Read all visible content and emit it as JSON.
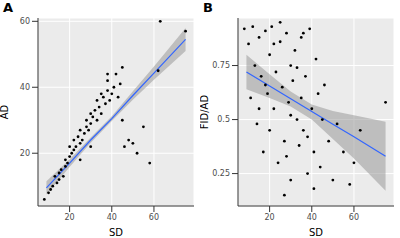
{
  "chart_data": [
    {
      "type": "scatter",
      "title": "A",
      "x_label": "SD",
      "y_label": "AD",
      "grid": true,
      "color": "#000000",
      "xlim": [
        5,
        79
      ],
      "ylim": [
        4,
        61
      ],
      "xticks": [
        20,
        40,
        60
      ],
      "yticks": [
        20,
        40,
        60
      ],
      "x": [
        8,
        10,
        11,
        12,
        13,
        14,
        15,
        15,
        16,
        17,
        18,
        18,
        19,
        20,
        20,
        21,
        22,
        22,
        23,
        24,
        25,
        25,
        26,
        27,
        28,
        28,
        29,
        30,
        30,
        31,
        32,
        33,
        33,
        34,
        35,
        35,
        36,
        37,
        38,
        38,
        39,
        40,
        41,
        42,
        43,
        44,
        45,
        46,
        48,
        50,
        52,
        55,
        58,
        62,
        63,
        75,
        45,
        38,
        30,
        25
      ],
      "values": [
        6,
        8,
        9,
        10,
        13,
        11,
        12,
        14,
        15,
        13,
        16,
        18,
        17,
        19,
        22,
        20,
        21,
        24,
        22,
        25,
        23,
        27,
        24,
        26,
        28,
        30,
        27,
        32,
        29,
        31,
        33,
        30,
        36,
        34,
        38,
        32,
        37,
        35,
        39,
        42,
        36,
        38,
        40,
        44,
        37,
        41,
        30,
        22,
        24,
        23,
        20,
        28,
        17,
        45,
        60,
        57,
        46,
        44,
        22,
        18
      ],
      "fit": {
        "color": "#3366ff",
        "band_color": "#999999",
        "x": [
          9,
          20,
          30,
          40,
          50,
          60,
          75
        ],
        "values": [
          9.5,
          17,
          24,
          30.5,
          37.5,
          44.3,
          54.5
        ],
        "lower": [
          7.5,
          15.8,
          23.2,
          29.8,
          36.2,
          42.3,
          51
        ],
        "upper": [
          11.5,
          18.2,
          24.8,
          31.2,
          38.8,
          46.3,
          58
        ]
      }
    },
    {
      "type": "scatter",
      "title": "B",
      "x_label": "SD",
      "y_label": "FID/AD",
      "grid": true,
      "color": "#000000",
      "xlim": [
        5,
        79
      ],
      "ylim": [
        0.1,
        0.97
      ],
      "xticks": [
        20,
        40,
        60
      ],
      "yticks": [
        0.25,
        0.5,
        0.75
      ],
      "x": [
        8,
        10,
        11,
        12,
        13,
        14,
        15,
        16,
        17,
        18,
        19,
        20,
        20,
        21,
        22,
        23,
        24,
        25,
        26,
        27,
        28,
        29,
        30,
        30,
        31,
        32,
        33,
        34,
        35,
        35,
        36,
        37,
        38,
        39,
        40,
        41,
        42,
        43,
        44,
        45,
        46,
        48,
        50,
        52,
        55,
        58,
        60,
        63,
        75,
        22,
        27,
        33,
        38,
        18,
        25,
        30,
        41,
        28,
        36,
        15
      ],
      "values": [
        0.92,
        0.85,
        0.6,
        0.93,
        0.75,
        0.48,
        0.88,
        0.7,
        0.35,
        0.91,
        0.62,
        0.8,
        0.45,
        0.93,
        0.55,
        0.72,
        0.3,
        0.86,
        0.65,
        0.4,
        0.9,
        0.58,
        0.75,
        0.22,
        0.68,
        0.82,
        0.5,
        0.38,
        0.88,
        0.6,
        0.45,
        0.7,
        0.25,
        0.92,
        0.55,
        0.35,
        0.78,
        0.62,
        0.28,
        0.5,
        0.66,
        0.4,
        0.22,
        0.48,
        0.35,
        0.2,
        0.3,
        0.45,
        0.58,
        0.85,
        0.15,
        0.74,
        0.42,
        0.66,
        0.95,
        0.52,
        0.18,
        0.33,
        0.9,
        0.55
      ],
      "fit": {
        "color": "#3366ff",
        "band_color": "#999999",
        "x": [
          9,
          20,
          30,
          40,
          50,
          60,
          75
        ],
        "values": [
          0.72,
          0.655,
          0.596,
          0.537,
          0.478,
          0.42,
          0.33
        ],
        "lower": [
          0.64,
          0.6,
          0.56,
          0.5,
          0.41,
          0.32,
          0.17
        ],
        "upper": [
          0.8,
          0.71,
          0.63,
          0.57,
          0.54,
          0.52,
          0.49
        ]
      }
    }
  ]
}
